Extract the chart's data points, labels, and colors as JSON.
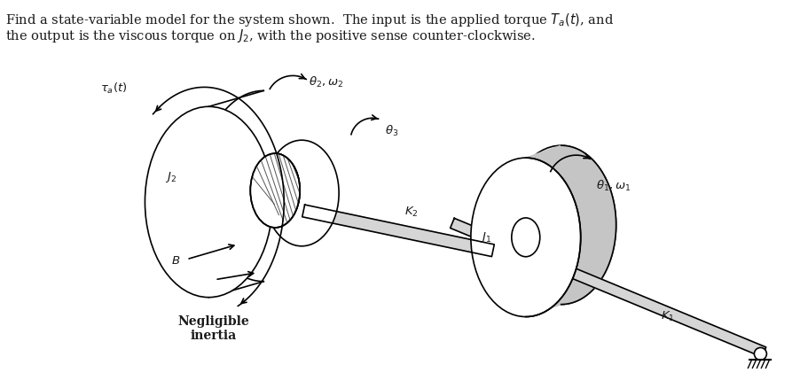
{
  "bg_color": "#ffffff",
  "text_color": "#1a1a1a",
  "title_line1": "Find a state-variable model for the system shown.  The input is the applied torque $T_a(t)$, and",
  "title_line2": "the output is the viscous torque on $J_2$, with the positive sense counter-clockwise.",
  "label_Ta": "$\\tau_a(t)$",
  "label_theta2_omega2": "$\\theta_2, \\omega_2$",
  "label_theta3": "$\\theta_3$",
  "label_J2": "$J_2$",
  "label_B": "$B$",
  "label_K2": "$K_2$",
  "label_J1": "$J_1$",
  "label_theta1_omega1": "$\\theta_1, \\omega_1$",
  "label_K1": "$K_1$",
  "label_negligible": "Negligible\ninertia",
  "fig_width": 9.11,
  "fig_height": 4.38,
  "dpi": 100
}
